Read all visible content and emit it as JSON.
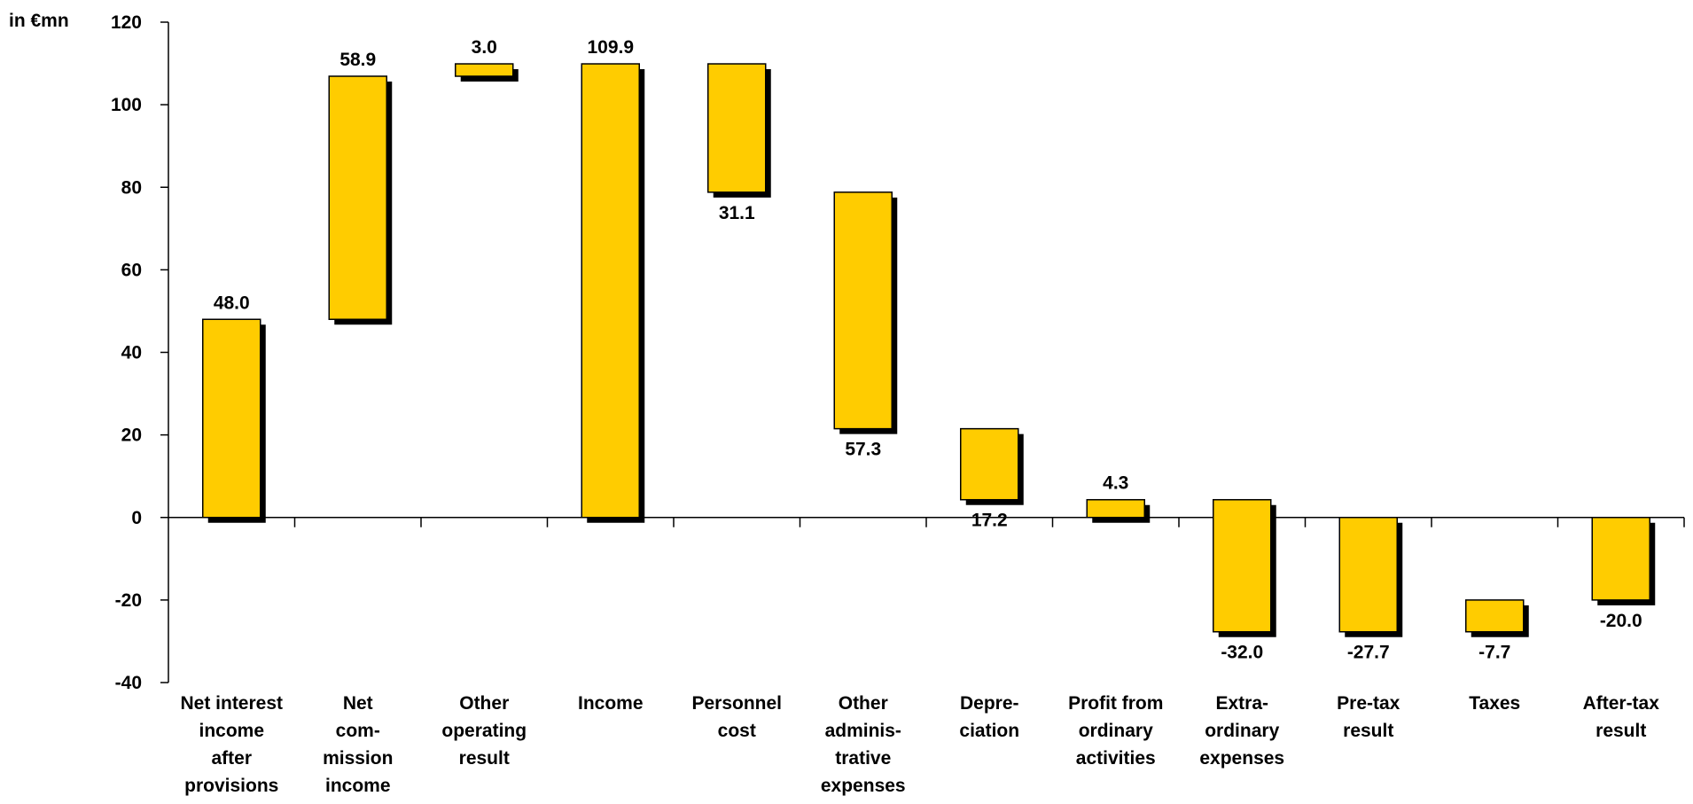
{
  "chart_data": {
    "type": "bar",
    "subtype": "waterfall",
    "ylabel": "in €mn",
    "ylim": [
      -40,
      120
    ],
    "yticks": [
      "120",
      "100",
      "80",
      "60",
      "40",
      "20",
      "0",
      "-20",
      "-40"
    ],
    "grid": false,
    "legend": "none",
    "colors": {
      "bar": "#FFCC00",
      "bar_border": "#000000",
      "shadow": "#000000"
    },
    "categories": [
      [
        "Net interest",
        "income",
        "after",
        "provisions"
      ],
      [
        "Net",
        "com-",
        "mission",
        "income"
      ],
      [
        "Other",
        "operating",
        "result"
      ],
      [
        "Income"
      ],
      [
        "Personnel",
        "cost"
      ],
      [
        "Other",
        "adminis-",
        "trative",
        "expenses"
      ],
      [
        "Depre-",
        "ciation"
      ],
      [
        "Profit from",
        "ordinary",
        "activities"
      ],
      [
        "Extra-",
        "ordinary",
        "expenses"
      ],
      [
        "Pre-tax",
        "result"
      ],
      [
        "Taxes"
      ],
      [
        "After-tax",
        "result"
      ]
    ],
    "bars": [
      {
        "from": 0,
        "to": 48.0,
        "label": "48.0"
      },
      {
        "from": 48.0,
        "to": 106.9,
        "label": "58.9"
      },
      {
        "from": 106.9,
        "to": 109.9,
        "label": "3.0"
      },
      {
        "from": 0,
        "to": 109.9,
        "label": "109.9"
      },
      {
        "from": 109.9,
        "to": 78.8,
        "label": "31.1"
      },
      {
        "from": 78.8,
        "to": 21.5,
        "label": "57.3"
      },
      {
        "from": 21.5,
        "to": 4.3,
        "label": "17.2"
      },
      {
        "from": 0,
        "to": 4.3,
        "label": "4.3"
      },
      {
        "from": 4.3,
        "to": -27.7,
        "label": "-32.0"
      },
      {
        "from": 0,
        "to": -27.7,
        "label": "-27.7"
      },
      {
        "from": -20.0,
        "to": -27.7,
        "label": "-7.7"
      },
      {
        "from": 0,
        "to": -20.0,
        "label": "-20.0"
      }
    ]
  }
}
